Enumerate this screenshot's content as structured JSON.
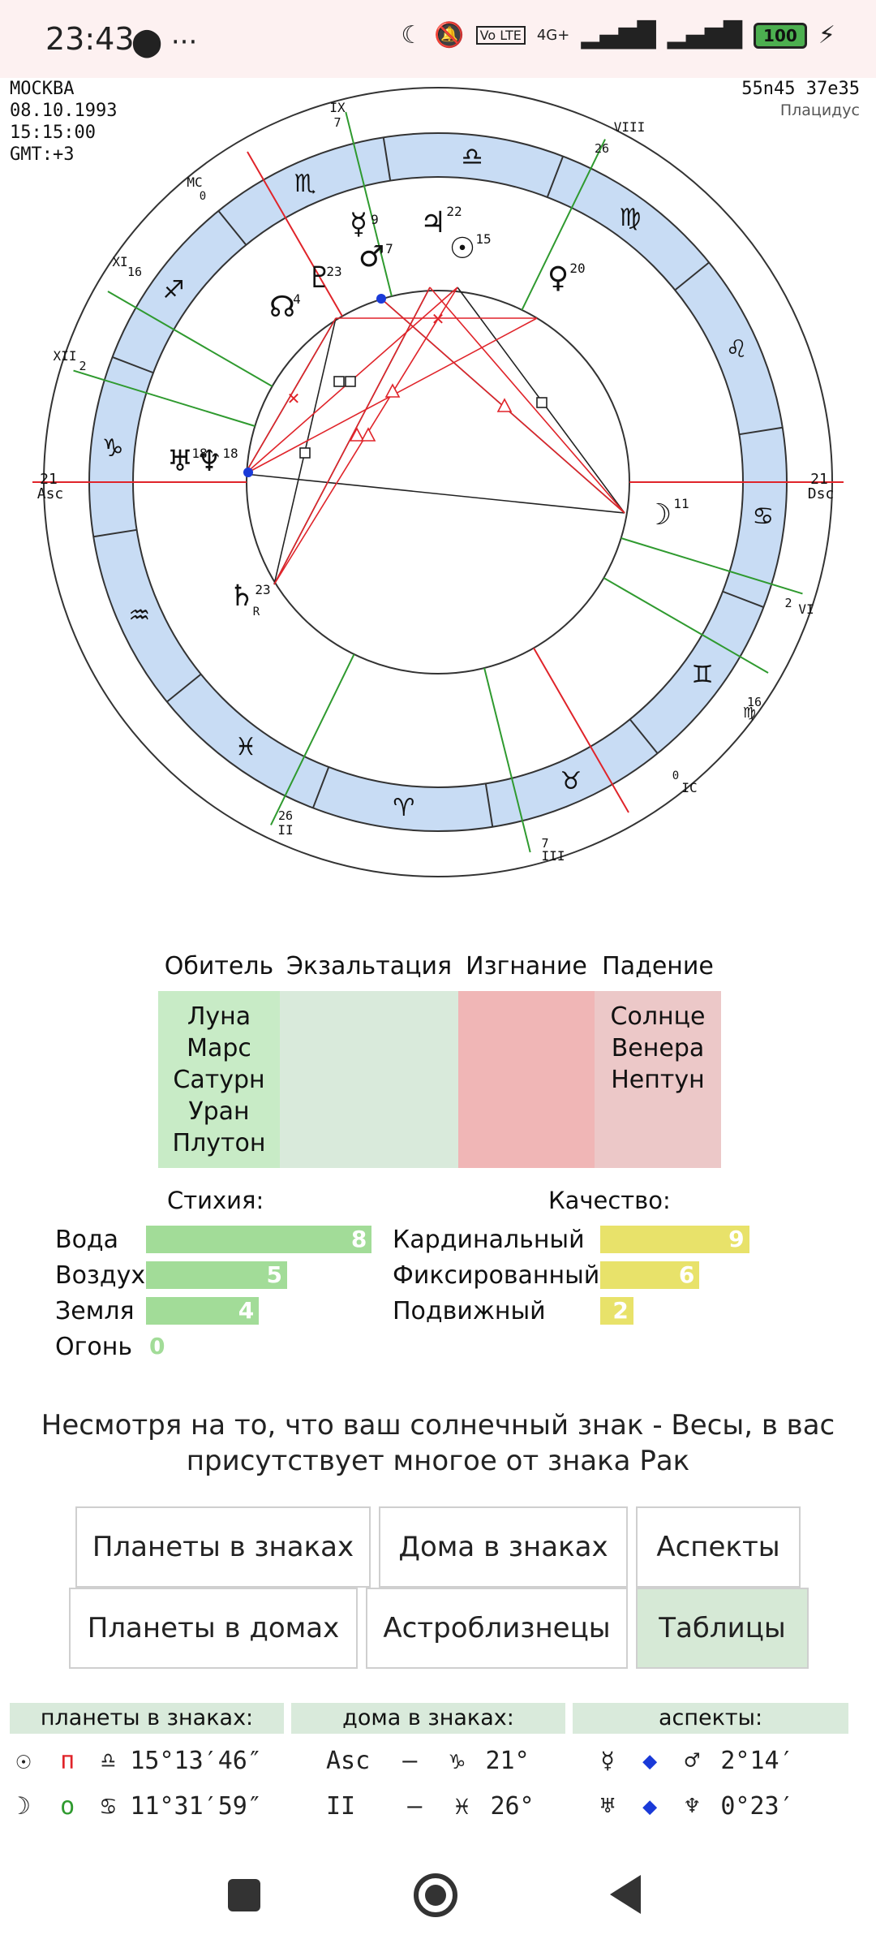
{
  "status_bar": {
    "time": "23:43",
    "left_icons": "⬤ ···",
    "network": "4G+",
    "battery": "100",
    "icons": [
      "moon-icon",
      "bell-off-icon",
      "volte-icon",
      "signal-icon",
      "battery-icon",
      "charging-icon"
    ]
  },
  "chart": {
    "city": "МОСКВА",
    "date": "08.10.1993",
    "time": "15:15:00",
    "gmt": "GMT:+3",
    "coords": "55n45 37e35",
    "house_system": "Плацидус",
    "asc_label": "Asc",
    "dsc_label": "Dsc",
    "mc_label": "MC",
    "ic_label": "IC",
    "asc_degree": "21",
    "dsc_degree": "21",
    "mc_degree": "0",
    "ic_degree": "0",
    "houses": [
      {
        "name": "IX",
        "degree": "7"
      },
      {
        "name": "VIII",
        "degree": "26"
      },
      {
        "name": "XI",
        "degree": "16"
      },
      {
        "name": "XII",
        "degree": "2"
      },
      {
        "name": "VI",
        "degree": "2"
      },
      {
        "name": "V",
        "degree": "16"
      },
      {
        "name": "II",
        "degree": "26"
      },
      {
        "name": "III",
        "degree": "7"
      }
    ],
    "zodiac_glyphs": [
      "♎",
      "♏",
      "♐",
      "♑",
      "♒",
      "♓",
      "♈",
      "♉",
      "♊",
      "♋",
      "♌",
      "♍"
    ],
    "planets": [
      {
        "glyph": "☿",
        "degree": "9",
        "name": "mercury"
      },
      {
        "glyph": "♂",
        "degree": "7",
        "name": "mars"
      },
      {
        "glyph": "♃",
        "degree": "22",
        "name": "jupiter"
      },
      {
        "glyph": "☉",
        "degree": "15",
        "name": "sun"
      },
      {
        "glyph": "♀",
        "degree": "20",
        "name": "venus"
      },
      {
        "glyph": "♇",
        "degree": "23",
        "name": "pluto"
      },
      {
        "glyph": "☊",
        "degree": "4",
        "name": "node"
      },
      {
        "glyph": "♅",
        "degree": "18",
        "name": "uranus"
      },
      {
        "glyph": "♆",
        "degree": "18",
        "name": "neptune"
      },
      {
        "glyph": "♄",
        "degree": "23",
        "name": "saturn",
        "retro": "R"
      },
      {
        "glyph": "☽",
        "degree": "11",
        "name": "moon"
      }
    ]
  },
  "dignity": {
    "headers": [
      "Обитель",
      "Экзальтация",
      "Изгнание",
      "Падение"
    ],
    "domicile": "Луна\nМарс\nСатурн\nУран\nПлутон",
    "exaltation": "",
    "detriment": "",
    "fall": "Солнце\nВенера\nНептун"
  },
  "elements": {
    "title": "Стихия:",
    "items": [
      {
        "label": "Вода",
        "value": "8"
      },
      {
        "label": "Воздух",
        "value": "5"
      },
      {
        "label": "Земля",
        "value": "4"
      },
      {
        "label": "Огонь",
        "value": "0"
      }
    ]
  },
  "quality": {
    "title": "Качество:",
    "items": [
      {
        "label": "Кардинальный",
        "value": "9"
      },
      {
        "label": "Фиксированный",
        "value": "6"
      },
      {
        "label": "Подвижный",
        "value": "2"
      }
    ]
  },
  "summary": "Несмотря на то, что ваш солнечный знак - Весы, в вас присутствует многое от знака Рак",
  "buttons": {
    "planets_in_signs": "Планеты в знаках",
    "houses_in_signs": "Дома в знаках",
    "aspects": "Аспекты",
    "planets_in_houses": "Планеты в домах",
    "astrotwins": "Астроблизнецы",
    "tables": "Таблицы"
  },
  "tables": {
    "planets_header": "планеты в знаках:",
    "houses_header": "дома в знаках:",
    "aspects_header": "аспекты:",
    "planet_rows": [
      {
        "planet": "☉",
        "mark": "п",
        "sign": "♎",
        "pos": "15°13′46″"
      },
      {
        "planet": "☽",
        "mark": "о",
        "sign": "♋",
        "pos": "11°31′59″"
      }
    ],
    "house_rows": [
      {
        "house": "Asc",
        "dash": "–",
        "sign": "♑",
        "pos": "21°"
      },
      {
        "house": "II",
        "dash": "–",
        "sign": "♓",
        "pos": "26°"
      }
    ],
    "aspect_rows": [
      {
        "p1": "☿",
        "p2": "♂",
        "orb": "2°14′"
      },
      {
        "p1": "♅",
        "p2": "♆",
        "orb": "0°23′"
      }
    ]
  },
  "colors": {
    "zodiac_ring": "#c8dcf4",
    "red_aspect": "#e0242a",
    "black_aspect": "#222222",
    "house_line": "#2f9a2f"
  }
}
